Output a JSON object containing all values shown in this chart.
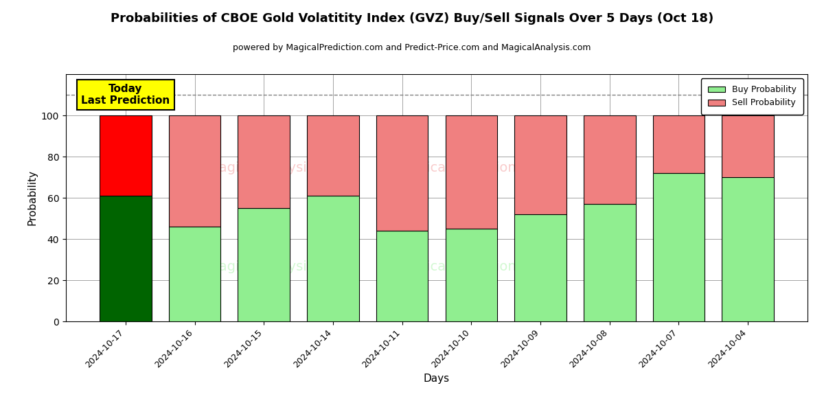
{
  "title": "Probabilities of CBOE Gold Volatitity Index (GVZ) Buy/Sell Signals Over 5 Days (Oct 18)",
  "subtitle": "powered by MagicalPrediction.com and Predict-Price.com and MagicalAnalysis.com",
  "xlabel": "Days",
  "ylabel": "Probability",
  "dates": [
    "2024-10-17",
    "2024-10-16",
    "2024-10-15",
    "2024-10-14",
    "2024-10-11",
    "2024-10-10",
    "2024-10-09",
    "2024-10-08",
    "2024-10-07",
    "2024-10-04"
  ],
  "buy_probs": [
    61,
    46,
    55,
    61,
    44,
    45,
    52,
    57,
    72,
    70
  ],
  "sell_probs": [
    39,
    54,
    45,
    39,
    56,
    55,
    48,
    43,
    28,
    30
  ],
  "today_buy_color": "#006400",
  "today_sell_color": "#FF0000",
  "other_buy_color": "#90EE90",
  "other_sell_color": "#F08080",
  "today_label_bg": "#FFFF00",
  "today_label_text": "Today\nLast Prediction",
  "dashed_line_y": 110,
  "ylim": [
    0,
    120
  ],
  "yticks": [
    0,
    20,
    40,
    60,
    80,
    100
  ],
  "legend_buy_color": "#90EE90",
  "legend_sell_color": "#F08080",
  "figsize": [
    12,
    6
  ],
  "dpi": 100
}
